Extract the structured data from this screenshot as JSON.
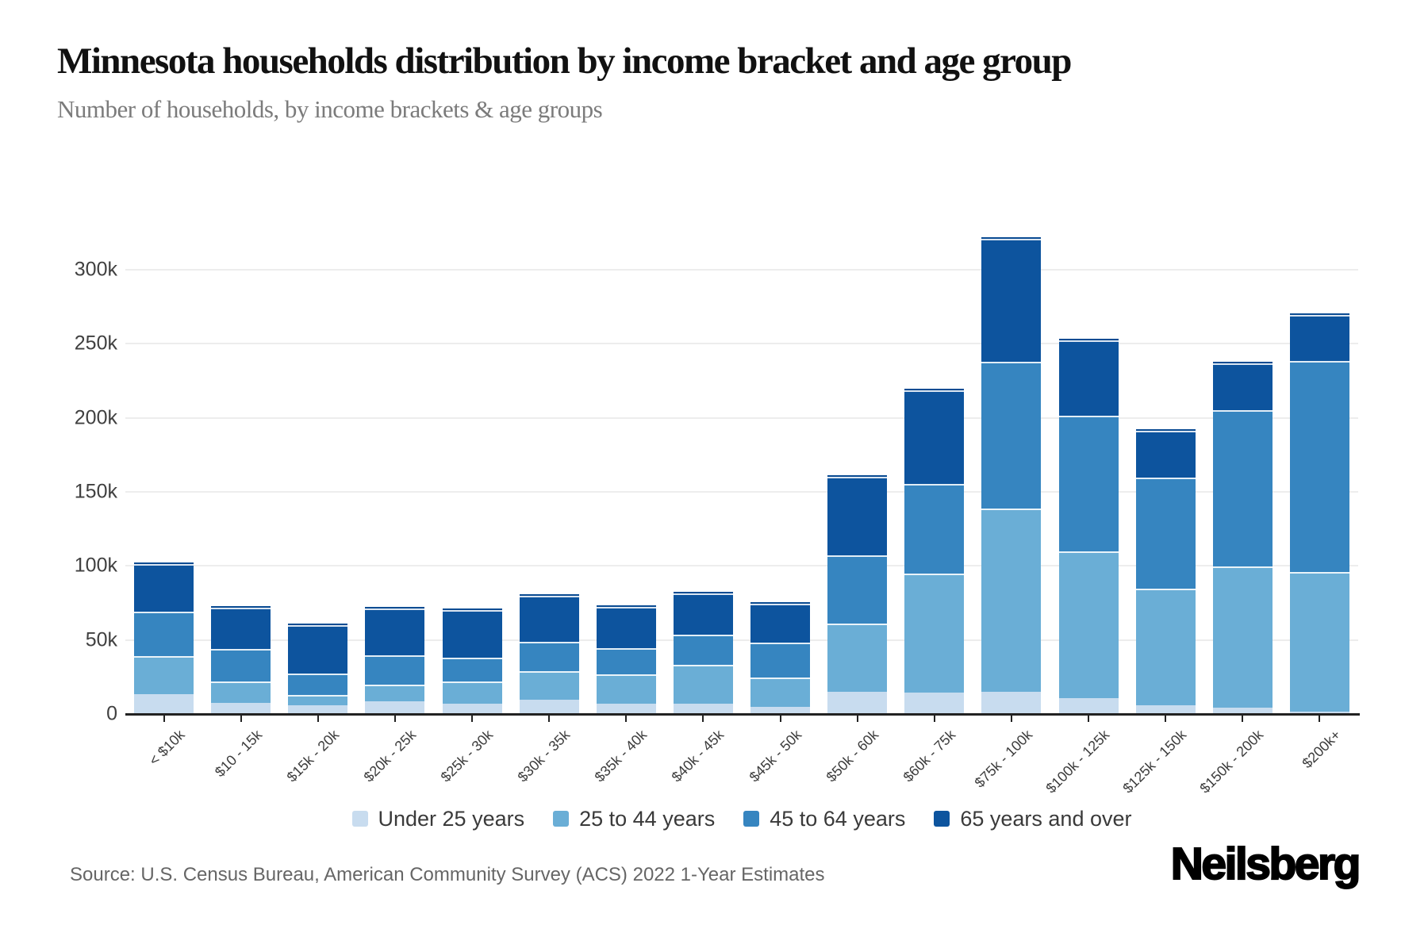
{
  "header": {
    "title": "Minnesota households distribution by income bracket and age group",
    "subtitle": "Number of households, by income brackets & age groups"
  },
  "chart_data": {
    "type": "bar",
    "stacked": true,
    "title": "Minnesota households distribution by income bracket and age group",
    "subtitle": "Number of households, by income brackets & age groups",
    "xlabel": "",
    "ylabel": "",
    "grid": "horizontal",
    "legend_position": "bottom",
    "ylim": [
      0,
      345000
    ],
    "y_ticks": [
      {
        "value": 0,
        "label": "0"
      },
      {
        "value": 50000,
        "label": "50k"
      },
      {
        "value": 100000,
        "label": "100k"
      },
      {
        "value": 150000,
        "label": "150k"
      },
      {
        "value": 200000,
        "label": "200k"
      },
      {
        "value": 250000,
        "label": "250k"
      },
      {
        "value": 300000,
        "label": "300k"
      }
    ],
    "categories": [
      "< $10k",
      "$10 - 15k",
      "$15k - 20k",
      "$20k - 25k",
      "$25k - 30k",
      "$30k - 35k",
      "$35k - 40k",
      "$40k - 45k",
      "$45k - 50k",
      "$50k - 60k",
      "$60k - 75k",
      "$75k - 100k",
      "$100k - 125k",
      "$125k - 150k",
      "$150k - 200k",
      "$200k+"
    ],
    "series": [
      {
        "name": "Under 25 years",
        "color": "#c8dcef",
        "values": [
          13000,
          7000,
          5500,
          8000,
          6500,
          9000,
          6500,
          6500,
          4500,
          14500,
          14000,
          14500,
          10000,
          5500,
          3500,
          1000
        ]
      },
      {
        "name": "25 to 44 years",
        "color": "#6aaed6",
        "values": [
          25500,
          14500,
          7000,
          11500,
          15000,
          19500,
          19500,
          26000,
          19500,
          46000,
          80500,
          123500,
          99500,
          78500,
          95500,
          94500
        ]
      },
      {
        "name": "45 to 64 years",
        "color": "#3685c0",
        "values": [
          30000,
          22000,
          14500,
          19500,
          16000,
          19500,
          18000,
          20500,
          23500,
          46000,
          60500,
          99500,
          91500,
          75000,
          105500,
          142500
        ]
      },
      {
        "name": "65 years and over",
        "color": "#0d549e",
        "values": [
          32000,
          28000,
          32500,
          31500,
          32000,
          31500,
          28000,
          28000,
          26500,
          53000,
          63000,
          83000,
          51000,
          31500,
          32000,
          31000
        ]
      }
    ]
  },
  "footer": {
    "source": "Source: U.S. Census Bureau, American Community Survey (ACS) 2022 1-Year Estimates",
    "brand": "Neilsberg"
  }
}
